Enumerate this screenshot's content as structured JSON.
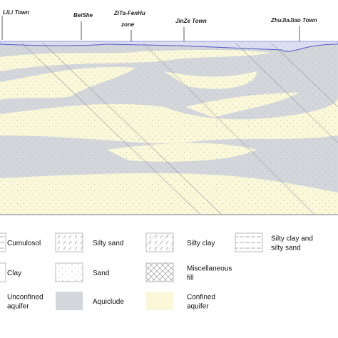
{
  "towns": [
    {
      "lines": [
        "LiLi Town"
      ]
    },
    {
      "lines": [
        "BeiShe"
      ]
    },
    {
      "lines": [
        "ZiTa-FenHu",
        "zone"
      ]
    },
    {
      "lines": [
        "JinZe Town"
      ]
    },
    {
      "lines": [
        "ZhuJiaJiao Town"
      ]
    }
  ],
  "legend": [
    {
      "lines": [
        "Cumulosol"
      ]
    },
    {
      "lines": [
        "Silty sand"
      ]
    },
    {
      "lines": [
        "Silty clay"
      ]
    },
    {
      "lines": [
        "Silty clay and",
        "silty sand"
      ]
    },
    {
      "lines": [
        "Clay"
      ]
    },
    {
      "lines": [
        "Sand"
      ]
    },
    {
      "lines": [
        "Miscellaneous",
        "fill"
      ]
    },
    {
      "lines": [
        "Unconfined",
        "aquifer"
      ]
    },
    {
      "lines": [
        "Aquiclude"
      ]
    },
    {
      "lines": [
        "Confined",
        "aquifer"
      ]
    }
  ]
}
